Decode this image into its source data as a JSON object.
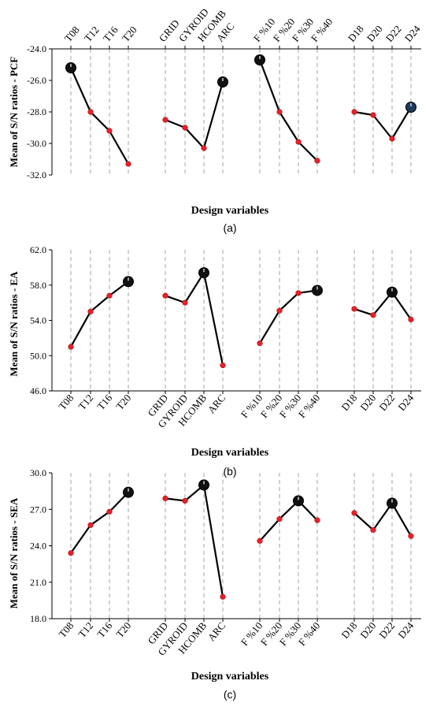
{
  "chart_data": [
    {
      "type": "line",
      "caption": "(a)",
      "xlabel": "Design variables",
      "ylabel": "Mean of S/N ratios - PCF",
      "ylim": [
        -32.0,
        -24.0
      ],
      "yticks": [
        "-24.0",
        "-26.0",
        "-28.0",
        "-30.0",
        "-32.0"
      ],
      "ytick_values": [
        -24,
        -26,
        -28,
        -30,
        -32
      ],
      "tick_position": "top",
      "grid": false,
      "groups": [
        {
          "name": "",
          "categories": [
            "T08",
            "T12",
            "T16",
            "T20"
          ],
          "values": [
            -25.2,
            -28.0,
            -29.2,
            -31.3
          ],
          "highlight": "T08"
        },
        {
          "name": "",
          "categories": [
            "GRID",
            "GYROID",
            "HCOMB",
            "ARC"
          ],
          "values": [
            -28.5,
            -29.0,
            -30.3,
            -26.1
          ],
          "highlight": "ARC"
        },
        {
          "name": "",
          "categories": [
            "F %10",
            "F %20",
            "F %30",
            "F %40"
          ],
          "values": [
            -24.7,
            -28.0,
            -29.9,
            -31.1
          ],
          "highlight": "F %10"
        },
        {
          "name": "",
          "categories": [
            "D18",
            "D20",
            "D22",
            "D24"
          ],
          "values": [
            -28.0,
            -28.2,
            -29.7,
            -27.7
          ],
          "highlight": "D24"
        }
      ]
    },
    {
      "type": "line",
      "caption": "(b)",
      "xlabel": "Design variables",
      "ylabel": "Mean of S/N ratios - EA",
      "ylim": [
        46.0,
        62.0
      ],
      "yticks": [
        "62.0",
        "58.0",
        "54.0",
        "50.0",
        "46.0"
      ],
      "ytick_values": [
        62,
        58,
        54,
        50,
        46
      ],
      "tick_position": "bottom",
      "grid": false,
      "groups": [
        {
          "name": "",
          "categories": [
            "T08",
            "T12",
            "T16",
            "T20"
          ],
          "values": [
            51.0,
            55.0,
            56.8,
            58.4
          ],
          "highlight": "T20"
        },
        {
          "name": "",
          "categories": [
            "GRID",
            "GYROID",
            "HCOMB",
            "ARC"
          ],
          "values": [
            56.8,
            56.0,
            59.4,
            48.9
          ],
          "highlight": "HCOMB"
        },
        {
          "name": "",
          "categories": [
            "F %10",
            "F %20",
            "F %30",
            "F %40"
          ],
          "values": [
            51.4,
            55.1,
            57.1,
            57.4
          ],
          "highlight": "F %40"
        },
        {
          "name": "",
          "categories": [
            "D18",
            "D20",
            "D22",
            "D24"
          ],
          "values": [
            55.3,
            54.6,
            57.2,
            54.1
          ],
          "highlight": "D22"
        }
      ]
    },
    {
      "type": "line",
      "caption": "(c)",
      "xlabel": "Design variables",
      "ylabel": "Mean of S/N ratios - SEA",
      "ylim": [
        18.0,
        30.0
      ],
      "yticks": [
        "30.0",
        "27.0",
        "24.0",
        "21.0",
        "18.0"
      ],
      "ytick_values": [
        30,
        27,
        24,
        21,
        18
      ],
      "tick_position": "bottom",
      "grid": false,
      "groups": [
        {
          "name": "",
          "categories": [
            "T08",
            "T12",
            "T16",
            "T20"
          ],
          "values": [
            23.4,
            25.7,
            26.8,
            28.4
          ],
          "highlight": "T20"
        },
        {
          "name": "",
          "categories": [
            "GRID",
            "GYROID",
            "HCOMB",
            "ARC"
          ],
          "values": [
            27.9,
            27.7,
            29.0,
            19.8
          ],
          "highlight": "HCOMB"
        },
        {
          "name": "",
          "categories": [
            "F %10",
            "F %20",
            "F %30",
            "F %40"
          ],
          "values": [
            24.4,
            26.2,
            27.7,
            26.1
          ],
          "highlight": "F %30"
        },
        {
          "name": "",
          "categories": [
            "D18",
            "D20",
            "D22",
            "D24"
          ],
          "values": [
            26.7,
            25.3,
            27.5,
            24.8
          ],
          "highlight": "D22"
        }
      ]
    }
  ],
  "colors": {
    "line": "#000000",
    "marker": "#e8202a",
    "highlight": "#111111",
    "highlight_alt": "#1f3a5a",
    "guide": "#9a9a9a"
  }
}
